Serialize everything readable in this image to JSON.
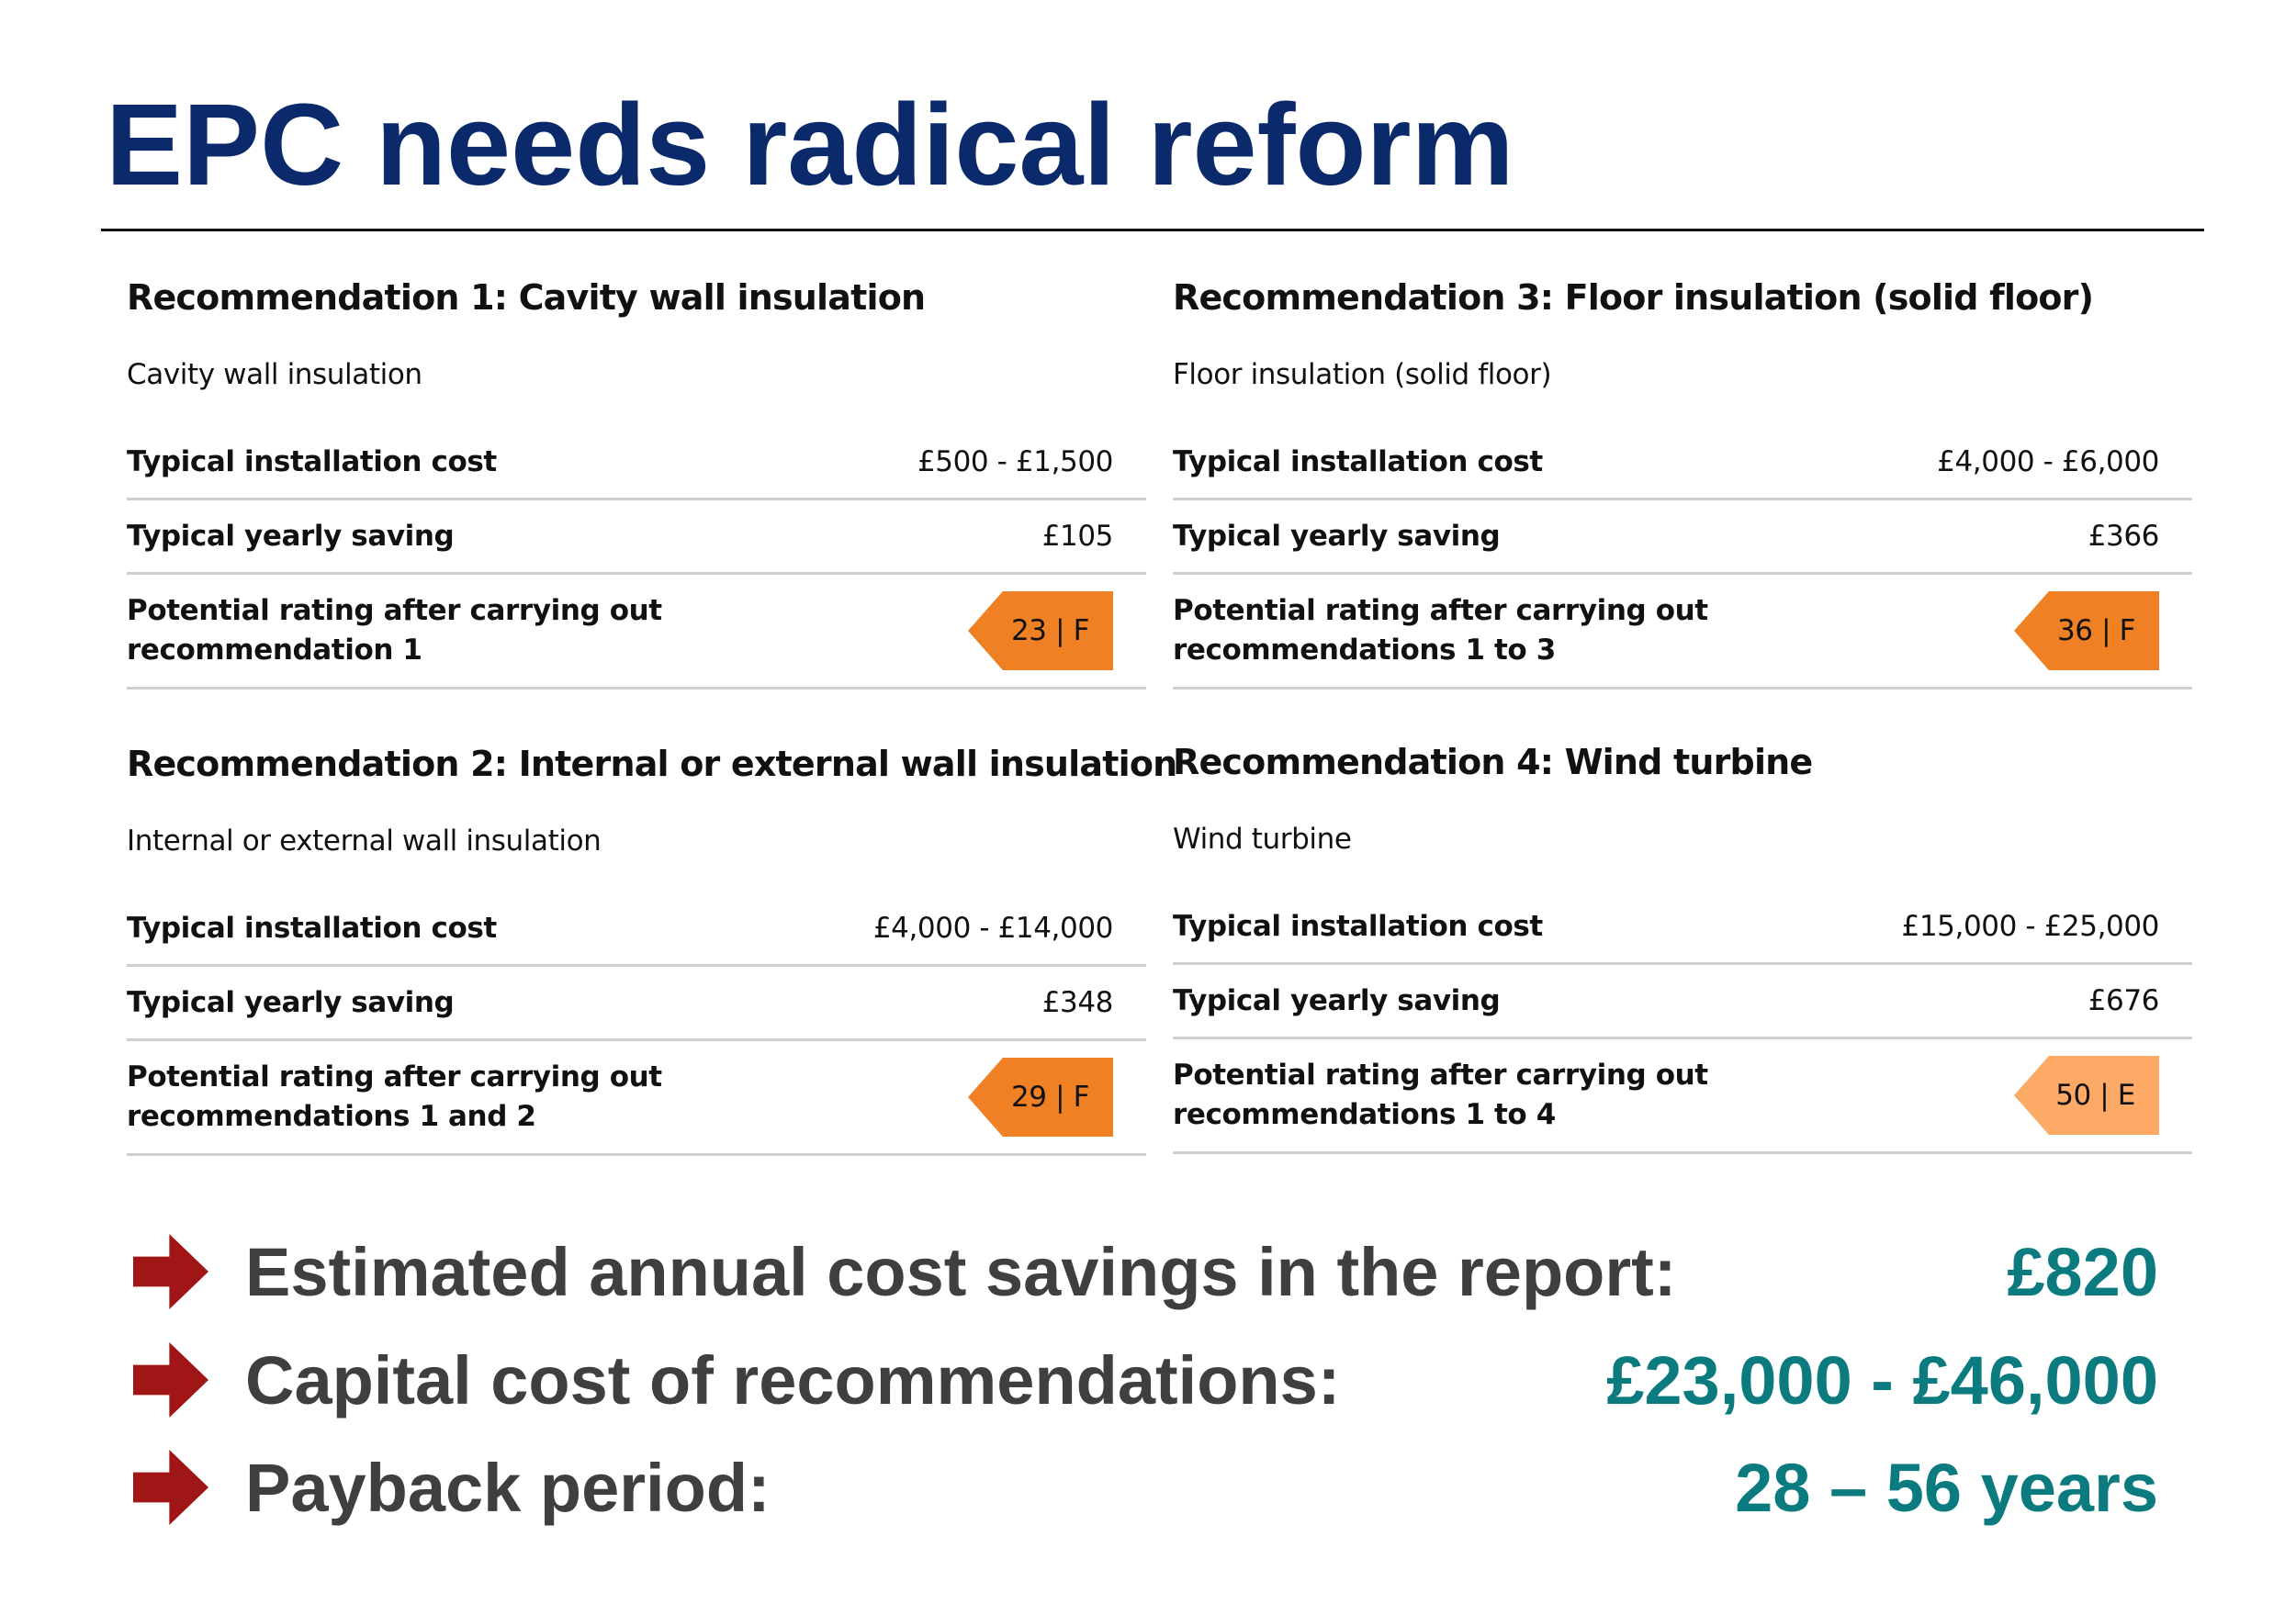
{
  "title": "EPC needs radical reform",
  "labels": {
    "cost": "Typical installation cost",
    "saving": "Typical yearly saving",
    "rating_line1": "Potential rating after carrying out"
  },
  "recommendations": [
    {
      "heading": "Recommendation 1: Cavity wall insulation",
      "subtitle": "Cavity wall insulation",
      "cost": "£500 - £1,500",
      "saving": "£105",
      "rating_line2": "recommendation 1",
      "rating": "23 | F",
      "rating_color": "#ef8023"
    },
    {
      "heading": "Recommendation 2: Internal or external wall insulation",
      "subtitle": "Internal or external wall insulation",
      "cost": "£4,000 - £14,000",
      "saving": "£348",
      "rating_line2": "recommendations 1 and 2",
      "rating": "29 | F",
      "rating_color": "#ef8023"
    },
    {
      "heading": "Recommendation 3: Floor insulation (solid floor)",
      "subtitle": "Floor insulation (solid floor)",
      "cost": "£4,000 - £6,000",
      "saving": "£366",
      "rating_line2": "recommendations 1 to 3",
      "rating": "36 | F",
      "rating_color": "#ef8023"
    },
    {
      "heading": "Recommendation 4: Wind turbine",
      "subtitle": "Wind turbine",
      "cost": "£15,000 - £25,000",
      "saving": "£676",
      "rating_line2": "recommendations 1 to 4",
      "rating": "50 | E",
      "rating_color": "#fcaa65"
    }
  ],
  "summary": [
    {
      "label": "Estimated annual cost savings in the report:",
      "value": "£820"
    },
    {
      "label": "Capital cost of recommendations:",
      "value": "£23,000 - £46,000"
    },
    {
      "label": "Payback period:",
      "value": "28 – 56 years"
    }
  ],
  "colors": {
    "title": "#0b2a6b",
    "summary_label": "#3f3f3f",
    "summary_value": "#0c7b80",
    "arrow": "#a01616"
  }
}
